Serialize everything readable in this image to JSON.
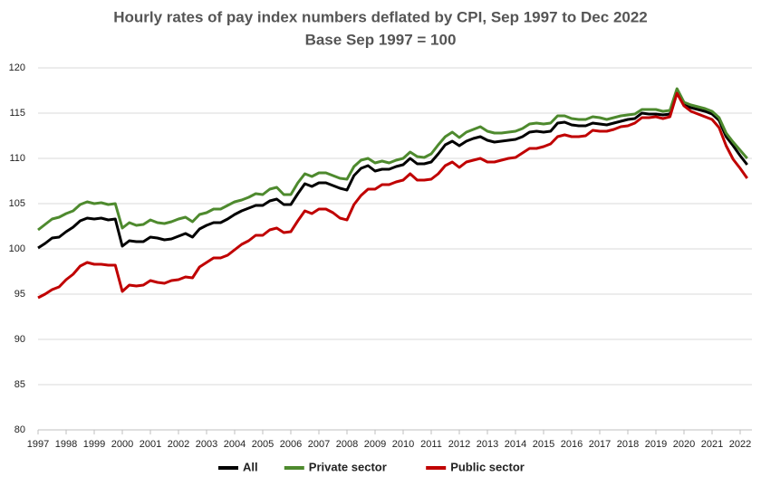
{
  "chart_data": {
    "type": "line",
    "title": "Hourly rates of pay index numbers  deflated by CPI, Sep 1997 to Dec 2022",
    "subtitle": "Base  Sep 1997 = 100",
    "x": [
      1997,
      1997.25,
      1997.5,
      1997.75,
      1998,
      1998.25,
      1998.5,
      1998.75,
      1999,
      1999.25,
      1999.5,
      1999.75,
      2000,
      2000.25,
      2000.5,
      2000.75,
      2001,
      2001.25,
      2001.5,
      2001.75,
      2002,
      2002.25,
      2002.5,
      2002.75,
      2003,
      2003.25,
      2003.5,
      2003.75,
      2004,
      2004.25,
      2004.5,
      2004.75,
      2005,
      2005.25,
      2005.5,
      2005.75,
      2006,
      2006.25,
      2006.5,
      2006.75,
      2007,
      2007.25,
      2007.5,
      2007.75,
      2008,
      2008.25,
      2008.5,
      2008.75,
      2009,
      2009.25,
      2009.5,
      2009.75,
      2010,
      2010.25,
      2010.5,
      2010.75,
      2011,
      2011.25,
      2011.5,
      2011.75,
      2012,
      2012.25,
      2012.5,
      2012.75,
      2013,
      2013.25,
      2013.5,
      2013.75,
      2014,
      2014.25,
      2014.5,
      2014.75,
      2015,
      2015.25,
      2015.5,
      2015.75,
      2016,
      2016.25,
      2016.5,
      2016.75,
      2017,
      2017.25,
      2017.5,
      2017.75,
      2018,
      2018.25,
      2018.5,
      2018.75,
      2019,
      2019.25,
      2019.5,
      2019.75,
      2020,
      2020.25,
      2020.5,
      2020.75,
      2021,
      2021.25,
      2021.5,
      2021.75,
      2022,
      2022.25
    ],
    "series": [
      {
        "name": "All",
        "color": "#000000",
        "values": [
          100.1,
          100.6,
          101.2,
          101.3,
          101.9,
          102.4,
          103.1,
          103.4,
          103.3,
          103.4,
          103.2,
          103.3,
          100.3,
          100.9,
          100.8,
          100.8,
          101.3,
          101.2,
          101.0,
          101.1,
          101.4,
          101.7,
          101.3,
          102.2,
          102.6,
          102.9,
          102.9,
          103.3,
          103.8,
          104.2,
          104.5,
          104.8,
          104.8,
          105.3,
          105.5,
          104.9,
          104.9,
          106.1,
          107.2,
          106.9,
          107.3,
          107.3,
          107.0,
          106.7,
          106.5,
          108.1,
          108.9,
          109.2,
          108.6,
          108.8,
          108.8,
          109.1,
          109.3,
          110.0,
          109.4,
          109.4,
          109.6,
          110.5,
          111.5,
          111.9,
          111.4,
          111.9,
          112.2,
          112.4,
          112.0,
          111.8,
          111.9,
          112.0,
          112.1,
          112.4,
          112.9,
          113.0,
          112.9,
          113.0,
          113.9,
          114.0,
          113.7,
          113.6,
          113.6,
          113.9,
          113.8,
          113.7,
          113.9,
          114.1,
          114.3,
          114.4,
          115.0,
          114.9,
          114.9,
          114.8,
          114.9,
          117.4,
          115.9,
          115.6,
          115.4,
          115.2,
          114.9,
          114.2,
          112.4,
          111.4,
          110.3,
          109.3
        ]
      },
      {
        "name": "Private sector",
        "color": "#4e8a2e",
        "values": [
          102.1,
          102.7,
          103.3,
          103.5,
          103.9,
          104.2,
          104.9,
          105.2,
          105.0,
          105.1,
          104.9,
          105.0,
          102.3,
          102.9,
          102.6,
          102.7,
          103.2,
          102.9,
          102.8,
          103.0,
          103.3,
          103.5,
          103.0,
          103.8,
          104.0,
          104.4,
          104.4,
          104.8,
          105.2,
          105.4,
          105.7,
          106.1,
          106.0,
          106.6,
          106.8,
          106.0,
          106.0,
          107.3,
          108.3,
          108.0,
          108.4,
          108.4,
          108.1,
          107.8,
          107.7,
          109.1,
          109.8,
          110.0,
          109.5,
          109.7,
          109.5,
          109.8,
          110.0,
          110.7,
          110.2,
          110.1,
          110.5,
          111.5,
          112.4,
          112.9,
          112.3,
          112.9,
          113.2,
          113.5,
          113.0,
          112.8,
          112.8,
          112.9,
          113.0,
          113.3,
          113.8,
          113.9,
          113.8,
          113.9,
          114.7,
          114.7,
          114.4,
          114.3,
          114.3,
          114.6,
          114.5,
          114.3,
          114.5,
          114.7,
          114.8,
          114.9,
          115.4,
          115.4,
          115.4,
          115.2,
          115.3,
          117.7,
          116.2,
          115.9,
          115.7,
          115.5,
          115.2,
          114.5,
          112.8,
          111.8,
          110.9,
          110.0
        ]
      },
      {
        "name": "Public sector",
        "color": "#c00000",
        "values": [
          94.6,
          95.0,
          95.5,
          95.8,
          96.6,
          97.2,
          98.1,
          98.5,
          98.3,
          98.3,
          98.2,
          98.2,
          95.3,
          96.0,
          95.9,
          96.0,
          96.5,
          96.3,
          96.2,
          96.5,
          96.6,
          96.9,
          96.8,
          98.0,
          98.5,
          99.0,
          99.0,
          99.3,
          99.9,
          100.5,
          100.9,
          101.5,
          101.5,
          102.1,
          102.3,
          101.8,
          101.9,
          103.1,
          104.2,
          103.9,
          104.4,
          104.4,
          104.0,
          103.4,
          103.2,
          104.9,
          105.9,
          106.6,
          106.6,
          107.1,
          107.1,
          107.4,
          107.6,
          108.3,
          107.6,
          107.6,
          107.7,
          108.3,
          109.2,
          109.6,
          109.0,
          109.6,
          109.8,
          110.0,
          109.6,
          109.6,
          109.8,
          110.0,
          110.1,
          110.6,
          111.1,
          111.1,
          111.3,
          111.6,
          112.4,
          112.6,
          112.4,
          112.4,
          112.5,
          113.1,
          113.0,
          113.0,
          113.2,
          113.5,
          113.6,
          113.9,
          114.5,
          114.5,
          114.6,
          114.4,
          114.6,
          117.2,
          115.8,
          115.2,
          114.9,
          114.6,
          114.3,
          113.4,
          111.4,
          109.9,
          108.9,
          107.8
        ]
      }
    ],
    "xlim": [
      1997,
      2022.25
    ],
    "xticks": [
      1997,
      1998,
      1999,
      2000,
      2001,
      2002,
      2003,
      2004,
      2005,
      2006,
      2007,
      2008,
      2009,
      2010,
      2011,
      2012,
      2013,
      2014,
      2015,
      2016,
      2017,
      2018,
      2019,
      2020,
      2021,
      2022
    ],
    "ylim": [
      80,
      120
    ],
    "yticks": [
      80,
      85,
      90,
      95,
      100,
      105,
      110,
      115,
      120
    ],
    "grid": true,
    "legend": "bottom"
  }
}
